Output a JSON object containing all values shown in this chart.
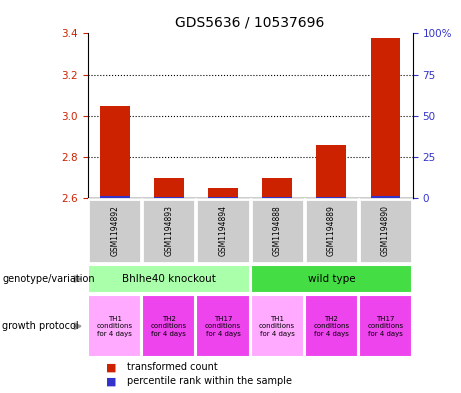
{
  "title": "GDS5636 / 10537696",
  "samples": [
    "GSM1194892",
    "GSM1194893",
    "GSM1194894",
    "GSM1194888",
    "GSM1194889",
    "GSM1194890"
  ],
  "transformed_counts": [
    3.05,
    2.7,
    2.65,
    2.7,
    2.86,
    3.38
  ],
  "percentile_ranks": [
    8,
    4,
    4,
    4,
    5,
    8
  ],
  "ylim_left": [
    2.6,
    3.4
  ],
  "yticks_left": [
    2.6,
    2.8,
    3.0,
    3.2,
    3.4
  ],
  "ylim_right": [
    0,
    100
  ],
  "yticks_right": [
    0,
    25,
    50,
    75,
    100
  ],
  "ytick_labels_right": [
    "0",
    "25",
    "50",
    "75",
    "100%"
  ],
  "bar_color_red": "#cc2200",
  "bar_color_blue": "#3333cc",
  "bar_width": 0.55,
  "baseline": 2.6,
  "genotype_groups": [
    {
      "label": "Bhlhe40 knockout",
      "start": 0,
      "end": 3,
      "color": "#aaffaa"
    },
    {
      "label": "wild type",
      "start": 3,
      "end": 6,
      "color": "#44dd44"
    }
  ],
  "proto_colors": [
    "#ffaaff",
    "#ee44ee",
    "#ee44ee",
    "#ffaaff",
    "#ee44ee",
    "#ee44ee"
  ],
  "proto_labels": [
    "TH1\nconditions\nfor 4 days",
    "TH2\nconditions\nfor 4 days",
    "TH17\nconditions\nfor 4 days",
    "TH1\nconditions\nfor 4 days",
    "TH2\nconditions\nfor 4 days",
    "TH17\nconditions\nfor 4 days"
  ],
  "sample_box_color": "#cccccc",
  "left_axis_color": "#cc2200",
  "right_axis_color": "#3333cc",
  "legend_red_label": "transformed count",
  "legend_blue_label": "percentile rank within the sample",
  "genotype_label": "genotype/variation",
  "growth_protocol_label": "growth protocol",
  "arrow_color": "#999999",
  "grid_color": "black",
  "grid_linestyle": "dotted",
  "grid_linewidth": 0.8,
  "title_fontsize": 10,
  "label_fontsize": 7,
  "sample_fontsize": 5.5,
  "proto_fontsize": 5.0,
  "geno_fontsize": 7.5,
  "legend_fontsize": 7
}
